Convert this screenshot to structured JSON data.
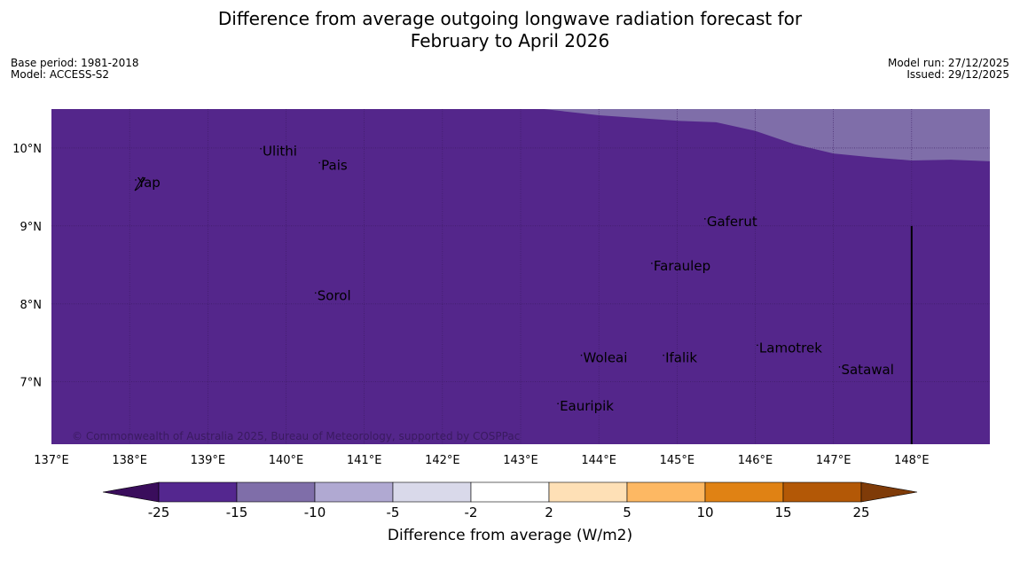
{
  "title_line1": "Difference from average outgoing longwave radiation forecast for",
  "title_line2": "February to April 2026",
  "base_period": "Base period: 1981-2018",
  "model": "Model: ACCESS-S2",
  "model_run": "Model run: 27/12/2025",
  "issued": "Issued: 29/12/2025",
  "copyright": "© Commonwealth of Australia 2025, Bureau of Meteorology, supported by COSPPac",
  "colorbar_label": "Difference from average (W/m2)",
  "chart_data": {
    "type": "heatmap",
    "lon_range": [
      137,
      149
    ],
    "lat_range": [
      6.2,
      10.5
    ],
    "lon_ticks": [
      "137°E",
      "138°E",
      "139°E",
      "140°E",
      "141°E",
      "142°E",
      "143°E",
      "144°E",
      "145°E",
      "146°E",
      "147°E",
      "148°E"
    ],
    "lat_ticks": [
      "10°N",
      "9°N",
      "8°N",
      "7°N"
    ],
    "field": {
      "dominant_category": "-25 to -15",
      "secondary_category": "-15 to -10",
      "secondary_region": "north-east corner",
      "boundary": [
        [
          143.3,
          10.5
        ],
        [
          144.0,
          10.42
        ],
        [
          145.0,
          10.35
        ],
        [
          145.5,
          10.33
        ],
        [
          146.0,
          10.22
        ],
        [
          146.5,
          10.05
        ],
        [
          147.0,
          9.93
        ],
        [
          147.5,
          9.88
        ],
        [
          148.0,
          9.84
        ],
        [
          148.5,
          9.85
        ],
        [
          149.0,
          9.83
        ]
      ]
    },
    "colorbar": {
      "ticks": [
        "-25",
        "-15",
        "-10",
        "-5",
        "-2",
        "2",
        "5",
        "10",
        "15",
        "25"
      ],
      "colors": [
        "#3a0d5c",
        "#54278f",
        "#7f6ea9",
        "#b0a9d2",
        "#d9d9ea",
        "#ffffff",
        "#fee0b6",
        "#fdb863",
        "#e08214",
        "#b35806",
        "#7f3b08"
      ]
    },
    "places": [
      {
        "name": "Yap",
        "lon": 138.1,
        "lat": 9.5
      },
      {
        "name": "Ulithi",
        "lon": 139.7,
        "lat": 9.9
      },
      {
        "name": "Pais",
        "lon": 140.45,
        "lat": 9.72
      },
      {
        "name": "Gaferut",
        "lon": 145.38,
        "lat": 9.0
      },
      {
        "name": "Faraulep",
        "lon": 144.7,
        "lat": 8.43
      },
      {
        "name": "Sorol",
        "lon": 140.4,
        "lat": 8.05
      },
      {
        "name": "Lamotrek",
        "lon": 146.05,
        "lat": 7.38
      },
      {
        "name": "Woleai",
        "lon": 143.8,
        "lat": 7.25
      },
      {
        "name": "Ifalik",
        "lon": 144.85,
        "lat": 7.25
      },
      {
        "name": "Satawal",
        "lon": 147.1,
        "lat": 7.1
      },
      {
        "name": "Eauripik",
        "lon": 143.5,
        "lat": 6.63
      }
    ]
  },
  "colors": {
    "ocean": "#54268b",
    "secondary": "#7f6ea9",
    "grid": "#3a1a60",
    "land": "#000000"
  }
}
